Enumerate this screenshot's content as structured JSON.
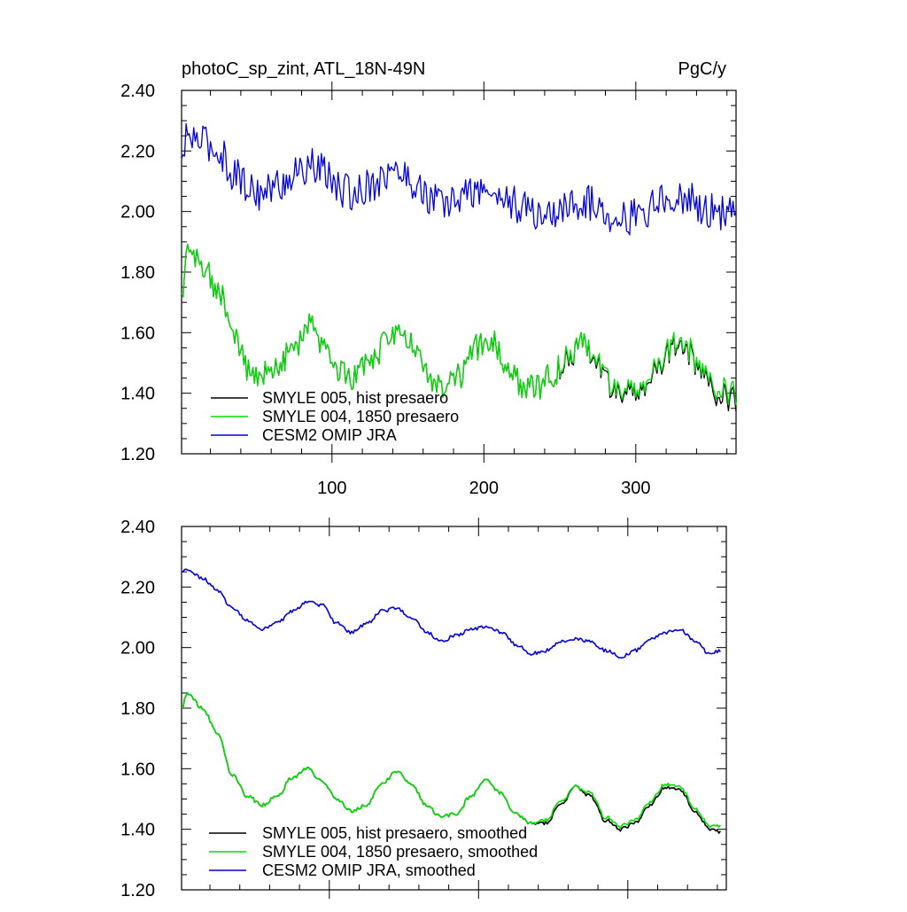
{
  "colors": {
    "smyle005": "#000000",
    "smyle004": "#00dd00",
    "cesm2": "#0000dd"
  },
  "chart_data": [
    {
      "type": "line",
      "title": "photoC_sp_zint, ATL_18N-49N",
      "units": "PgC/y",
      "xlim": [
        1,
        366
      ],
      "ylim": [
        1.2,
        2.4
      ],
      "xticks": [
        100,
        200,
        300
      ],
      "xtick_labels": [
        "100",
        "200",
        "300"
      ],
      "yticks": [
        1.2,
        1.4,
        1.6,
        1.8,
        2.0,
        2.2,
        2.4
      ],
      "ytick_labels": [
        "1.20",
        "1.40",
        "1.60",
        "1.80",
        "2.00",
        "2.20",
        "2.40"
      ],
      "legend_position": "bottom-left",
      "series": [
        {
          "name": "SMYLE 005, hist presaero",
          "color": "#000000",
          "style": "noisy",
          "knots_x": [
            1,
            5,
            15,
            25,
            35,
            45,
            55,
            65,
            75,
            85,
            95,
            105,
            115,
            125,
            135,
            145,
            155,
            165,
            175,
            185,
            195,
            205,
            215,
            225,
            235,
            245,
            255,
            265,
            275,
            285,
            295,
            305,
            315,
            325,
            335,
            345,
            355,
            366
          ],
          "knots_y": [
            1.72,
            1.86,
            1.83,
            1.74,
            1.6,
            1.48,
            1.46,
            1.5,
            1.55,
            1.62,
            1.56,
            1.48,
            1.45,
            1.5,
            1.56,
            1.61,
            1.55,
            1.45,
            1.42,
            1.46,
            1.55,
            1.57,
            1.5,
            1.43,
            1.42,
            1.46,
            1.51,
            1.56,
            1.5,
            1.42,
            1.4,
            1.43,
            1.49,
            1.55,
            1.53,
            1.45,
            1.39,
            1.38
          ]
        },
        {
          "name": "SMYLE 004, 1850 presaero",
          "color": "#00dd00",
          "style": "noisy",
          "knots_x": [
            1,
            5,
            15,
            25,
            35,
            45,
            55,
            65,
            75,
            85,
            95,
            105,
            115,
            125,
            135,
            145,
            155,
            165,
            175,
            185,
            195,
            205,
            215,
            225,
            235,
            245,
            255,
            265,
            275,
            285,
            295,
            305,
            315,
            325,
            335,
            345,
            355,
            366
          ],
          "knots_y": [
            1.72,
            1.86,
            1.83,
            1.74,
            1.6,
            1.48,
            1.46,
            1.5,
            1.55,
            1.62,
            1.56,
            1.48,
            1.45,
            1.5,
            1.56,
            1.61,
            1.55,
            1.45,
            1.42,
            1.46,
            1.55,
            1.57,
            1.5,
            1.43,
            1.42,
            1.46,
            1.52,
            1.56,
            1.51,
            1.43,
            1.41,
            1.44,
            1.5,
            1.56,
            1.54,
            1.46,
            1.41,
            1.4
          ]
        },
        {
          "name": "CESM2 OMIP JRA",
          "color": "#0000dd",
          "style": "noisy",
          "knots_x": [
            1,
            5,
            15,
            25,
            35,
            45,
            55,
            65,
            75,
            85,
            95,
            105,
            115,
            125,
            135,
            145,
            155,
            165,
            175,
            185,
            195,
            205,
            215,
            225,
            235,
            245,
            255,
            265,
            275,
            285,
            295,
            305,
            315,
            325,
            335,
            345,
            355,
            366
          ],
          "knots_y": [
            2.16,
            2.25,
            2.23,
            2.2,
            2.13,
            2.08,
            2.06,
            2.09,
            2.12,
            2.15,
            2.13,
            2.07,
            2.06,
            2.09,
            2.12,
            2.13,
            2.09,
            2.04,
            2.02,
            2.05,
            2.07,
            2.06,
            2.04,
            2.01,
            1.99,
            1.99,
            2.02,
            2.03,
            2.02,
            1.99,
            1.98,
            2.0,
            2.03,
            2.05,
            2.04,
            2.01,
            1.99,
            2.0
          ]
        }
      ]
    },
    {
      "type": "line",
      "xlim": [
        1,
        366
      ],
      "ylim": [
        1.2,
        2.4
      ],
      "xticks": [
        100,
        200,
        300
      ],
      "yticks": [
        1.2,
        1.4,
        1.6,
        1.8,
        2.0,
        2.2,
        2.4
      ],
      "ytick_labels": [
        "1.20",
        "1.40",
        "1.60",
        "1.80",
        "2.00",
        "2.20",
        "2.40"
      ],
      "legend_position": "bottom-left",
      "series": [
        {
          "name": "SMYLE 005, hist presaero, smoothed",
          "color": "#000000",
          "style": "smooth",
          "knots_x": [
            1,
            5,
            15,
            25,
            35,
            45,
            55,
            65,
            75,
            85,
            95,
            105,
            115,
            125,
            135,
            145,
            155,
            165,
            175,
            185,
            195,
            205,
            215,
            225,
            235,
            245,
            255,
            265,
            275,
            285,
            295,
            305,
            315,
            325,
            335,
            345,
            355,
            362
          ],
          "knots_y": [
            1.8,
            1.85,
            1.8,
            1.72,
            1.58,
            1.51,
            1.48,
            1.51,
            1.57,
            1.6,
            1.56,
            1.5,
            1.46,
            1.48,
            1.55,
            1.59,
            1.55,
            1.48,
            1.44,
            1.45,
            1.51,
            1.56,
            1.52,
            1.45,
            1.42,
            1.42,
            1.48,
            1.54,
            1.51,
            1.43,
            1.4,
            1.42,
            1.48,
            1.54,
            1.53,
            1.46,
            1.4,
            1.39
          ]
        },
        {
          "name": "SMYLE 004, 1850 presaero, smoothed",
          "color": "#00dd00",
          "style": "smooth",
          "knots_x": [
            1,
            5,
            15,
            25,
            35,
            45,
            55,
            65,
            75,
            85,
            95,
            105,
            115,
            125,
            135,
            145,
            155,
            165,
            175,
            185,
            195,
            205,
            215,
            225,
            235,
            245,
            255,
            265,
            275,
            285,
            295,
            305,
            315,
            325,
            335,
            345,
            355,
            362
          ],
          "knots_y": [
            1.8,
            1.85,
            1.8,
            1.72,
            1.58,
            1.51,
            1.48,
            1.51,
            1.57,
            1.6,
            1.56,
            1.5,
            1.46,
            1.48,
            1.55,
            1.59,
            1.55,
            1.48,
            1.44,
            1.45,
            1.51,
            1.56,
            1.52,
            1.45,
            1.42,
            1.43,
            1.49,
            1.54,
            1.52,
            1.44,
            1.41,
            1.43,
            1.49,
            1.55,
            1.54,
            1.47,
            1.41,
            1.41
          ]
        },
        {
          "name": "CESM2 OMIP JRA, smoothed",
          "color": "#0000dd",
          "style": "smooth",
          "knots_x": [
            1,
            5,
            15,
            25,
            35,
            45,
            55,
            65,
            75,
            85,
            95,
            105,
            115,
            125,
            135,
            145,
            155,
            165,
            175,
            185,
            195,
            205,
            215,
            225,
            235,
            245,
            255,
            265,
            275,
            285,
            295,
            305,
            315,
            325,
            335,
            345,
            355,
            362
          ],
          "knots_y": [
            2.25,
            2.26,
            2.23,
            2.19,
            2.13,
            2.09,
            2.06,
            2.08,
            2.12,
            2.15,
            2.14,
            2.08,
            2.05,
            2.08,
            2.12,
            2.13,
            2.1,
            2.05,
            2.02,
            2.04,
            2.06,
            2.07,
            2.05,
            2.01,
            1.98,
            1.99,
            2.02,
            2.03,
            2.02,
            1.99,
            1.97,
            1.99,
            2.03,
            2.05,
            2.06,
            2.02,
            1.98,
            1.99
          ]
        }
      ]
    }
  ]
}
